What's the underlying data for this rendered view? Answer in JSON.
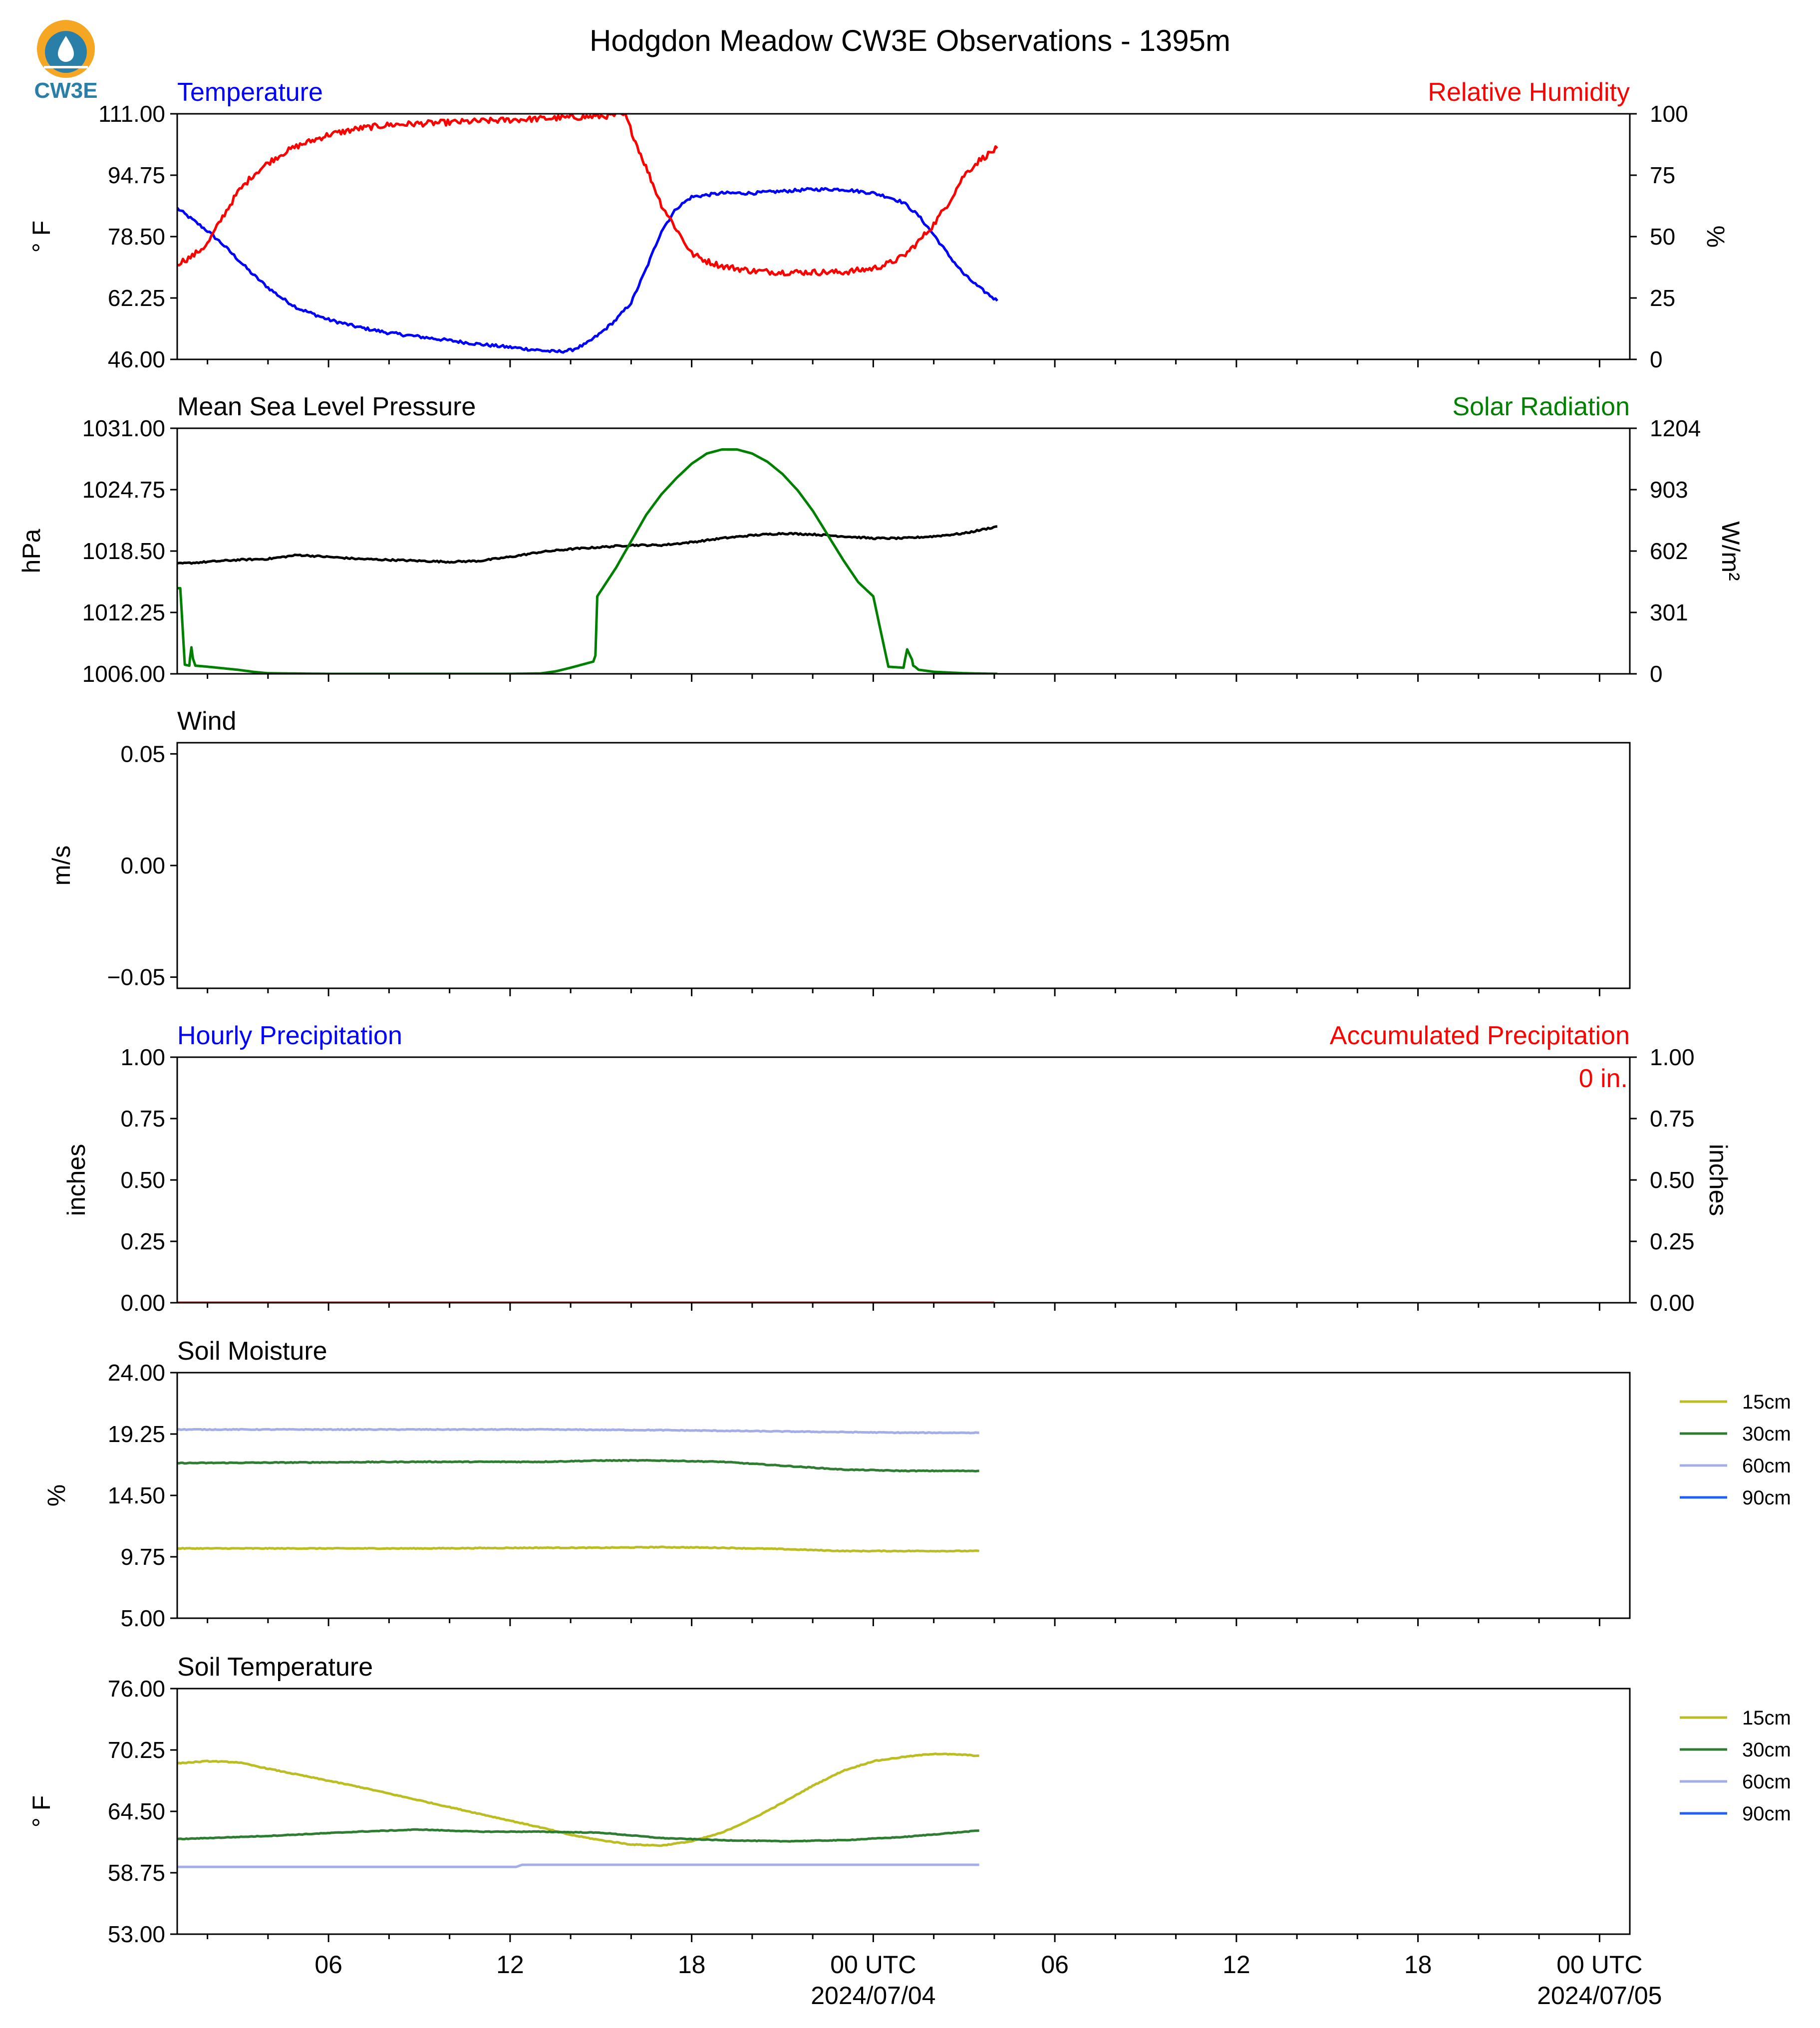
{
  "page": {
    "title": "Hodgdon Meadow CW3E Observations - 1395m",
    "logo_text": "CW3E",
    "colors": {
      "temperature": "#0000ff",
      "humidity": "#ff0000",
      "pressure": "#000000",
      "solar": "#008000",
      "soil_15cm": "#bcbd22",
      "soil_30cm": "#2e7d32",
      "soil_60cm": "#a3aee8",
      "soil_90cm": "#1f5fff",
      "logo_orange": "#f5a623",
      "logo_teal": "#2a7fa8"
    }
  },
  "time_axis": {
    "xlim_hours": [
      0,
      48
    ],
    "ticks": [
      {
        "hour": 5,
        "label": "06",
        "sublabel": ""
      },
      {
        "hour": 11,
        "label": "12",
        "sublabel": ""
      },
      {
        "hour": 17,
        "label": "18",
        "sublabel": ""
      },
      {
        "hour": 23,
        "label": "00 UTC",
        "sublabel": "2024/07/04"
      },
      {
        "hour": 29,
        "label": "06",
        "sublabel": ""
      },
      {
        "hour": 35,
        "label": "12",
        "sublabel": ""
      },
      {
        "hour": 41,
        "label": "18",
        "sublabel": ""
      },
      {
        "hour": 47,
        "label": "00 UTC",
        "sublabel": "2024/07/05"
      }
    ],
    "minor_tick_step_hours": 2
  },
  "chart_data": [
    {
      "type": "line",
      "title_left": "Temperature",
      "title_right": "Relative Humidity",
      "ylabel": "° F",
      "ylabel_right": "%",
      "ylim": [
        46,
        111
      ],
      "ylim_right": [
        0,
        100
      ],
      "yticks": [
        "46.00",
        "62.25",
        "78.50",
        "94.75",
        "111.00"
      ],
      "yticks_right": [
        "0",
        "25",
        "50",
        "75",
        "100"
      ],
      "series": [
        {
          "axis": "left",
          "color_key": "temperature",
          "noise": 0.4,
          "x": [
            0,
            0.5,
            1,
            1.5,
            2,
            2.5,
            3,
            3.5,
            4,
            5,
            6,
            7,
            8,
            9,
            10,
            11,
            12,
            12.5,
            13,
            13.5,
            14,
            14.5,
            15,
            15.5,
            16,
            16.5,
            17,
            18,
            19,
            20,
            21,
            22,
            23,
            23.5,
            24,
            24.5,
            25,
            25.5,
            26,
            26.5,
            27.1
          ],
          "y": [
            86,
            83,
            80,
            76.5,
            72.5,
            68.5,
            65,
            62,
            59.5,
            56.5,
            54.5,
            53,
            52,
            51,
            50,
            49.2,
            48.4,
            48,
            48.4,
            50,
            53,
            56.5,
            61,
            70,
            80,
            86,
            89,
            90,
            90,
            90.5,
            91,
            91,
            90,
            89,
            87.5,
            84,
            79,
            73.5,
            68.5,
            65,
            61.5
          ]
        },
        {
          "axis": "right",
          "color_key": "humidity",
          "noise": 1.2,
          "x": [
            0,
            0.5,
            0.8,
            1,
            1.5,
            2,
            2.5,
            3,
            3.5,
            4,
            5,
            6,
            7,
            8,
            9,
            10,
            11,
            12,
            13,
            14,
            14.5,
            14.8,
            15.2,
            15.6,
            16,
            16.5,
            17,
            17.5,
            18,
            19,
            20,
            21,
            22,
            23,
            23.5,
            24,
            24.5,
            25,
            25.5,
            26,
            26.5,
            27.1
          ],
          "y": [
            39,
            42,
            45,
            47,
            58,
            68,
            75,
            80,
            84,
            87,
            91.5,
            94,
            95.5,
            96,
            96.5,
            97,
            97.5,
            98,
            98.5,
            99,
            99.4,
            99.5,
            87,
            75,
            63,
            53,
            43,
            40,
            38,
            36,
            35.5,
            35.5,
            35.5,
            37,
            39,
            42,
            48,
            55,
            64,
            75,
            81,
            86
          ]
        }
      ]
    },
    {
      "type": "line",
      "title_left": "Mean Sea Level Pressure",
      "title_right": "Solar Radiation",
      "ylabel": "hPa",
      "ylabel_right": "W/m²",
      "ylim": [
        1006,
        1031
      ],
      "ylim_right": [
        0,
        1204
      ],
      "yticks": [
        "1006.00",
        "1012.25",
        "1018.50",
        "1024.75",
        "1031.00"
      ],
      "yticks_right": [
        "0",
        "301",
        "602",
        "903",
        "1204"
      ],
      "series": [
        {
          "axis": "left",
          "color_key": "pressure",
          "noise": 0.08,
          "x": [
            0,
            1,
            2,
            3,
            4,
            5,
            6,
            7,
            8,
            9,
            10,
            11,
            12,
            13,
            14,
            15,
            16,
            17,
            18,
            19,
            20,
            21,
            22,
            23,
            24,
            25,
            26,
            27.1
          ],
          "y": [
            1017.2,
            1017.4,
            1017.6,
            1017.7,
            1018.1,
            1017.9,
            1017.7,
            1017.6,
            1017.5,
            1017.4,
            1017.5,
            1017.9,
            1018.4,
            1018.7,
            1018.9,
            1019.1,
            1019.1,
            1019.4,
            1019.8,
            1020.1,
            1020.3,
            1020.2,
            1020.0,
            1019.8,
            1019.8,
            1020.0,
            1020.3,
            1021.0
          ]
        },
        {
          "axis": "right",
          "color_key": "solar",
          "noise": 0,
          "x": [
            0,
            0.1,
            0.15,
            0.25,
            0.4,
            0.42,
            0.47,
            0.52,
            0.6,
            1,
            2,
            2.5,
            3,
            5,
            8,
            11,
            12,
            12.5,
            13,
            13.5,
            13.75,
            13.82,
            13.88,
            14.5,
            15,
            15.5,
            16,
            16.5,
            17,
            17.5,
            18,
            18.5,
            19,
            19.5,
            20,
            20.5,
            21,
            21.5,
            22,
            22.5,
            23,
            23.5,
            24,
            24.05,
            24.12,
            24.28,
            24.32,
            24.38,
            24.5,
            25,
            26,
            27.1
          ],
          "y": [
            420,
            420,
            300,
            45,
            40,
            75,
            130,
            75,
            40,
            35,
            20,
            10,
            3,
            0,
            0,
            0,
            2,
            12,
            30,
            50,
            60,
            90,
            380,
            520,
            650,
            780,
            880,
            960,
            1030,
            1080,
            1100,
            1100,
            1080,
            1040,
            980,
            900,
            800,
            680,
            560,
            450,
            380,
            35,
            30,
            70,
            120,
            70,
            40,
            35,
            20,
            10,
            3,
            0
          ]
        }
      ]
    },
    {
      "type": "line",
      "title_left": "Wind",
      "title_right": "",
      "ylabel": "m/s",
      "ylabel_right": "",
      "ylim": [
        -0.055,
        0.055
      ],
      "ylim_right": null,
      "yticks": [
        "−0.05",
        "0.00",
        "0.05"
      ],
      "ytick_values": [
        -0.05,
        0,
        0.05
      ],
      "yticks_right": [],
      "series": []
    },
    {
      "type": "line",
      "title_left": "Hourly Precipitation",
      "title_right": "Accumulated Precipitation",
      "annotation": "0 in.",
      "ylabel": "inches",
      "ylabel_right": "inches",
      "ylim": [
        0,
        1
      ],
      "ylim_right": [
        0,
        1
      ],
      "yticks": [
        "0.00",
        "0.25",
        "0.50",
        "0.75",
        "1.00"
      ],
      "yticks_right": [
        "0.00",
        "0.25",
        "0.50",
        "0.75",
        "1.00"
      ],
      "series": [
        {
          "axis": "left",
          "color_key": "temperature",
          "noise": 0,
          "x": [
            0,
            27
          ],
          "y": [
            0,
            0
          ]
        },
        {
          "axis": "right",
          "color_key": "humidity",
          "noise": 0,
          "x": [
            0,
            27
          ],
          "y": [
            0,
            0
          ]
        }
      ]
    },
    {
      "type": "line",
      "title_left": "Soil Moisture",
      "title_right": "",
      "ylabel": "%",
      "ylabel_right": "",
      "ylim": [
        5,
        24
      ],
      "ylim_right": null,
      "yticks": [
        "5.00",
        "9.75",
        "14.50",
        "19.25",
        "24.00"
      ],
      "yticks_right": [],
      "legend": [
        "15cm",
        "30cm",
        "60cm",
        "90cm"
      ],
      "series": [
        {
          "axis": "left",
          "name": "15cm",
          "color_key": "soil_15cm",
          "noise": 0.03,
          "x": [
            0,
            4,
            8,
            12,
            14,
            16,
            18,
            20,
            22,
            24,
            26.5
          ],
          "y": [
            10.4,
            10.4,
            10.4,
            10.45,
            10.45,
            10.5,
            10.45,
            10.35,
            10.2,
            10.2,
            10.2
          ]
        },
        {
          "axis": "left",
          "name": "30cm",
          "color_key": "soil_30cm",
          "noise": 0.03,
          "x": [
            0,
            4,
            8,
            12,
            14,
            16,
            18,
            20,
            22,
            24,
            26.5
          ],
          "y": [
            17.0,
            17.05,
            17.1,
            17.1,
            17.2,
            17.2,
            17.1,
            16.8,
            16.5,
            16.4,
            16.4
          ]
        },
        {
          "axis": "left",
          "name": "60cm",
          "color_key": "soil_60cm",
          "noise": 0.03,
          "x": [
            0,
            4,
            8,
            12,
            16,
            20,
            24,
            26.5
          ],
          "y": [
            19.6,
            19.6,
            19.6,
            19.6,
            19.55,
            19.45,
            19.35,
            19.35
          ]
        }
      ]
    },
    {
      "type": "line",
      "title_left": "Soil Temperature",
      "title_right": "",
      "ylabel": "° F",
      "ylabel_right": "",
      "ylim": [
        53,
        76
      ],
      "ylim_right": null,
      "yticks": [
        "53.00",
        "58.75",
        "64.50",
        "70.25",
        "76.00"
      ],
      "yticks_right": [],
      "legend": [
        "15cm",
        "30cm",
        "60cm",
        "90cm"
      ],
      "series": [
        {
          "axis": "left",
          "name": "15cm",
          "color_key": "soil_15cm",
          "noise": 0.04,
          "x": [
            0,
            1,
            2,
            3,
            6,
            9,
            12,
            13,
            14,
            15,
            16,
            17,
            18,
            19,
            20,
            21,
            22,
            23,
            24,
            25,
            26,
            26.5
          ],
          "y": [
            69.0,
            69.2,
            69.1,
            68.5,
            66.8,
            64.9,
            63.0,
            62.3,
            61.8,
            61.4,
            61.3,
            61.7,
            62.5,
            63.8,
            65.3,
            66.9,
            68.3,
            69.2,
            69.6,
            69.9,
            69.8,
            69.7
          ]
        },
        {
          "axis": "left",
          "name": "30cm",
          "color_key": "soil_30cm",
          "noise": 0.03,
          "x": [
            0,
            3,
            6,
            8,
            10,
            12,
            14,
            16,
            18,
            20,
            22,
            24,
            26.5
          ],
          "y": [
            61.9,
            62.2,
            62.6,
            62.8,
            62.6,
            62.6,
            62.5,
            62.0,
            61.8,
            61.7,
            61.8,
            62.1,
            62.7
          ]
        },
        {
          "axis": "left",
          "name": "60cm",
          "color_key": "soil_60cm",
          "noise": 0,
          "x": [
            0,
            11.2,
            11.4,
            26.5
          ],
          "y": [
            59.3,
            59.3,
            59.5,
            59.5
          ]
        }
      ]
    }
  ]
}
